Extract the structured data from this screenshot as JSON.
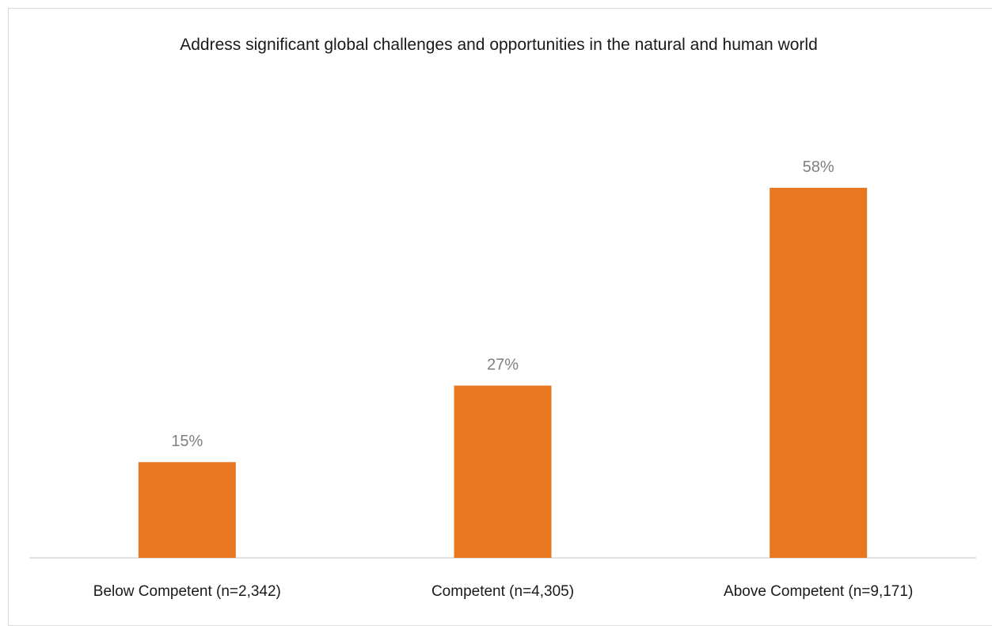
{
  "chart_data": {
    "type": "bar",
    "title": "Address significant global challenges and opportunities in the natural and human world",
    "categories": [
      "Below Competent (n=2,342)",
      "Competent (n=4,305)",
      "Above Competent (n=9,171)"
    ],
    "values": [
      15,
      27,
      58
    ],
    "value_labels": [
      "15%",
      "27%",
      "58%"
    ],
    "color": "#e87722"
  }
}
